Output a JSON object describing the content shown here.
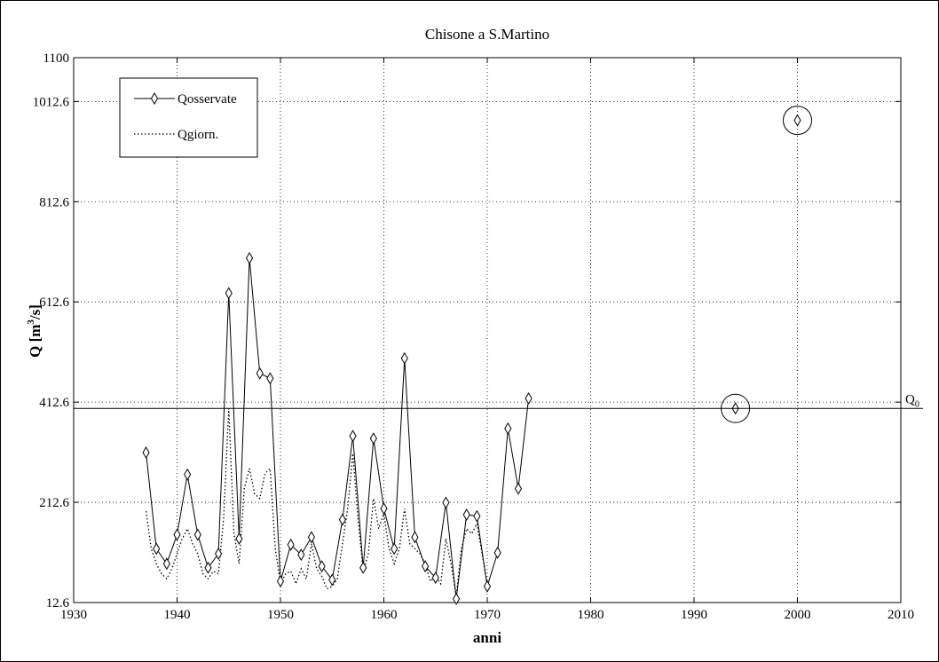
{
  "chart_data": {
    "type": "line",
    "title": "Chisone a S.Martino",
    "xlabel": "anni",
    "ylabel_main": "Q [m",
    "ylabel_sup": "3",
    "ylabel_tail": "/s]",
    "xlim": [
      1930,
      2010
    ],
    "ylim": [
      12.6,
      1100
    ],
    "xticks": [
      1930,
      1940,
      1950,
      1960,
      1970,
      1980,
      1990,
      2000,
      2010
    ],
    "xtick_labels": [
      "1930",
      "1940",
      "1950",
      "1960",
      "1970",
      "1980",
      "1990",
      "2000",
      "2010"
    ],
    "yticks": [
      12.6,
      212.6,
      412.6,
      612.6,
      812.6,
      1012.6,
      1100
    ],
    "ytick_labels": [
      "12.6",
      "212.6",
      "412.6",
      "612.6",
      "812.6",
      "1012.6",
      "1100"
    ],
    "grid": true,
    "legend_position": "top-left",
    "series": [
      {
        "name": "Qosservate",
        "style": "solid-diamond",
        "color": "#000000",
        "x": [
          1937,
          1938,
          1939,
          1940,
          1941,
          1942,
          1943,
          1944,
          1945,
          1946,
          1947,
          1948,
          1949,
          1950,
          1951,
          1952,
          1953,
          1954,
          1955,
          1956,
          1957,
          1958,
          1959,
          1960,
          1961,
          1962,
          1963,
          1964,
          1965,
          1966,
          1967,
          1968,
          1969,
          1970,
          1971,
          1972,
          1973,
          1974
        ],
        "y": [
          312,
          120,
          90,
          148,
          268,
          148,
          82,
          110,
          630,
          140,
          700,
          470,
          460,
          55,
          128,
          108,
          143,
          85,
          58,
          178,
          345,
          82,
          340,
          200,
          120,
          500,
          143,
          85,
          62,
          212,
          20,
          188,
          185,
          45,
          112,
          360,
          240,
          420
        ]
      },
      {
        "name": "Qgiorn.",
        "style": "dotted",
        "color": "#000000",
        "x": [
          1937,
          1937.5,
          1938,
          1938.5,
          1939,
          1939.5,
          1940,
          1940.5,
          1941,
          1941.5,
          1942,
          1942.5,
          1943,
          1943.5,
          1944,
          1944.5,
          1945,
          1945.5,
          1946,
          1946.5,
          1947,
          1947.5,
          1948,
          1948.5,
          1949,
          1949.5,
          1950,
          1950.5,
          1951,
          1951.5,
          1952,
          1952.5,
          1953,
          1953.5,
          1954,
          1954.5,
          1955,
          1955.5,
          1956,
          1956.5,
          1957,
          1957.5,
          1958,
          1958.5,
          1959,
          1959.5,
          1960,
          1960.5,
          1961,
          1961.5,
          1962,
          1962.5,
          1963,
          1963.5,
          1964,
          1964.5,
          1965,
          1965.5,
          1966,
          1966.5,
          1967,
          1967.5,
          1968,
          1968.5,
          1969,
          1969.5,
          1970
        ],
        "y": [
          195,
          120,
          90,
          70,
          60,
          80,
          110,
          140,
          160,
          130,
          110,
          70,
          60,
          75,
          70,
          180,
          400,
          150,
          90,
          240,
          280,
          230,
          220,
          270,
          280,
          120,
          50,
          70,
          75,
          50,
          80,
          60,
          130,
          80,
          65,
          40,
          45,
          60,
          130,
          200,
          310,
          180,
          75,
          110,
          220,
          160,
          190,
          120,
          90,
          120,
          200,
          130,
          120,
          110,
          90,
          55,
          65,
          50,
          140,
          90,
          25,
          120,
          160,
          150,
          170,
          110,
          50
        ]
      }
    ],
    "annotations": {
      "q0_line": {
        "y": 400,
        "label_main": "Q",
        "label_sub": "0"
      },
      "circled_points": [
        {
          "x": 1994,
          "y": 400
        },
        {
          "x": 2000,
          "y": 975
        }
      ]
    }
  }
}
